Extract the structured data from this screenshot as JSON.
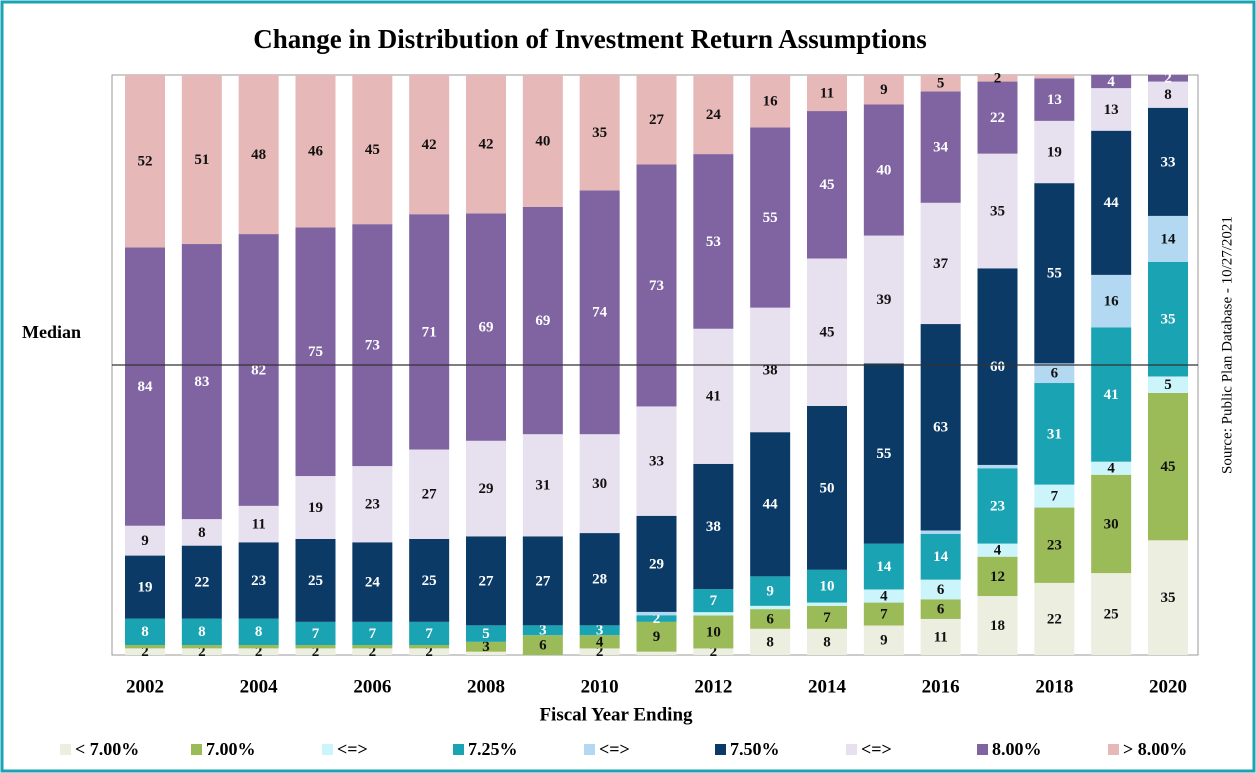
{
  "chart_data": {
    "type": "bar",
    "stacked": true,
    "percent_stacked": true,
    "title": "Change in Distribution of Investment Return Assumptions",
    "x_label": "Fiscal Year Ending",
    "annotation": "Median",
    "source": "Source: Public Plan Database - 10/27/2021",
    "categories": [
      "2002",
      null,
      "2004",
      null,
      "2006",
      null,
      "2008",
      null,
      "2010",
      null,
      "2012",
      null,
      "2014",
      null,
      "2016",
      null,
      "2018",
      null,
      "2020"
    ],
    "legend": "bottom",
    "series": [
      {
        "name": "< 7.00%",
        "color": "#eceee0",
        "values": [
          2,
          2,
          2,
          2,
          2,
          2,
          1,
          0,
          2,
          1,
          2,
          8,
          8,
          9,
          11,
          18,
          22,
          25,
          35
        ]
      },
      {
        "name": "7.00%",
        "color": "#9bbb59",
        "values": [
          1,
          1,
          1,
          1,
          1,
          1,
          3,
          6,
          4,
          9,
          10,
          6,
          7,
          7,
          6,
          12,
          23,
          30,
          45
        ]
      },
      {
        "name": "<=>",
        "color": "#ccf5fb",
        "values": [
          0,
          0,
          0,
          0,
          0,
          0,
          0,
          0,
          0,
          0,
          1,
          1,
          1,
          4,
          6,
          4,
          7,
          4,
          5
        ]
      },
      {
        "name": "7.25%",
        "color": "#1aa3b3",
        "values": [
          8,
          8,
          8,
          7,
          7,
          7,
          5,
          3,
          3,
          2,
          7,
          9,
          10,
          14,
          14,
          23,
          31,
          41,
          35
        ]
      },
      {
        "name": "<=>",
        "color": "#b3d9f2",
        "values": [
          0,
          0,
          0,
          0,
          0,
          0,
          0,
          0,
          0,
          1,
          0,
          0,
          0,
          0,
          1,
          1,
          6,
          16,
          14
        ]
      },
      {
        "name": "7.50%",
        "color": "#0b3a66",
        "values": [
          19,
          22,
          23,
          25,
          24,
          25,
          27,
          27,
          28,
          29,
          38,
          44,
          50,
          55,
          63,
          60,
          55,
          44,
          33
        ]
      },
      {
        "name": "<=>",
        "color": "#e6e0ef",
        "values": [
          9,
          8,
          11,
          19,
          23,
          27,
          29,
          31,
          30,
          33,
          41,
          38,
          45,
          39,
          37,
          35,
          19,
          13,
          8
        ]
      },
      {
        "name": "8.00%",
        "color": "#8064a2",
        "values": [
          84,
          83,
          82,
          75,
          73,
          71,
          69,
          69,
          74,
          73,
          53,
          55,
          45,
          40,
          34,
          22,
          13,
          4,
          2
        ]
      },
      {
        "name": "> 8.00%",
        "color": "#e6b8b7",
        "values": [
          52,
          51,
          48,
          46,
          45,
          42,
          42,
          40,
          35,
          27,
          24,
          16,
          11,
          9,
          5,
          2,
          1,
          0,
          0
        ]
      }
    ]
  }
}
